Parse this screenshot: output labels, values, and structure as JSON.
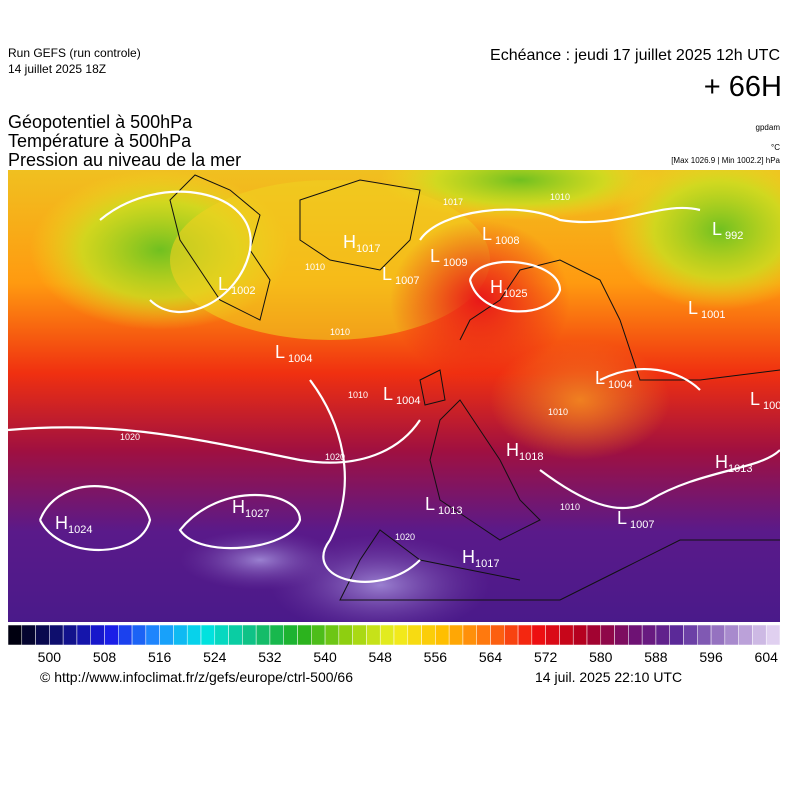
{
  "header": {
    "run": "Run GEFS (run controle)",
    "run_date": "14 juillet 2025 18Z",
    "echeance": "Echéance : jeudi 17 juillet 2025 12h UTC",
    "lead": "+ 66H",
    "fields": [
      "Géopotentiel à 500hPa",
      "Température à 500hPa",
      "Pression au niveau de la mer"
    ],
    "units": [
      "gpdam",
      "°C"
    ],
    "range": "[Max 1026.9 | Min 1002.2] hPa"
  },
  "map": {
    "centers": [
      {
        "symbol": "H",
        "value": "1017"
      },
      {
        "symbol": "L",
        "value": "1009"
      },
      {
        "symbol": "L",
        "value": "1008"
      },
      {
        "symbol": "L",
        "value": "1007"
      },
      {
        "symbol": "H",
        "value": "1025"
      },
      {
        "symbol": "L",
        "value": "1002"
      },
      {
        "symbol": "L",
        "value": "1004"
      },
      {
        "symbol": "L",
        "value": "1004"
      },
      {
        "symbol": "L",
        "value": "1004"
      },
      {
        "symbol": "L",
        "value": "992"
      },
      {
        "symbol": "L",
        "value": "1001"
      },
      {
        "symbol": "H",
        "value": "1024"
      },
      {
        "symbol": "H",
        "value": "1027"
      },
      {
        "symbol": "L",
        "value": "1013"
      },
      {
        "symbol": "H",
        "value": "1018"
      },
      {
        "symbol": "H",
        "value": "1017"
      },
      {
        "symbol": "L",
        "value": "1007"
      },
      {
        "symbol": "H",
        "value": "1013"
      },
      {
        "symbol": "L",
        "value": "100"
      }
    ],
    "isobar_labels": [
      "1017",
      "1010",
      "1020",
      "1020",
      "1010",
      "1010",
      "1010",
      "1020",
      "1010",
      "1010"
    ]
  },
  "colorbar": {
    "range": [
      494,
      606
    ],
    "step": 2,
    "ticks": [
      500,
      508,
      516,
      524,
      532,
      540,
      548,
      556,
      564,
      572,
      580,
      588,
      596,
      604
    ],
    "stops": [
      "#000010",
      "#10107a",
      "#1a1ae6",
      "#1e90ff",
      "#00e5e5",
      "#10c080",
      "#20b020",
      "#90d010",
      "#f0f020",
      "#ffc000",
      "#ff7010",
      "#f01010",
      "#b00020",
      "#701070",
      "#5a2a9a",
      "#a080c8",
      "#e0d0f0"
    ]
  },
  "footer": {
    "url": "© http://www.infoclimat.fr/z/gefs/europe/ctrl-500/66",
    "generated": "14 juil. 2025 22:10 UTC"
  }
}
